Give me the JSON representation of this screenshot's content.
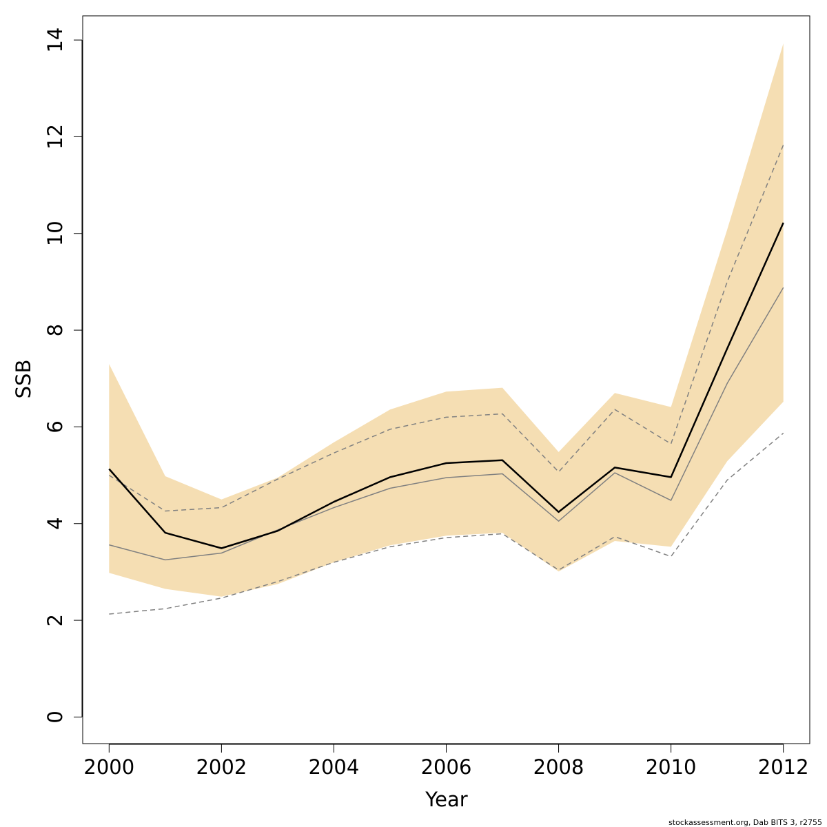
{
  "chart_data": {
    "type": "line",
    "xlabel": "Year",
    "ylabel": "SSB",
    "xlim": [
      1999.53,
      2012.47
    ],
    "ylim": [
      -0.55,
      14.5
    ],
    "x_ticks": [
      2000,
      2002,
      2004,
      2006,
      2008,
      2010,
      2012
    ],
    "y_ticks": [
      0,
      2,
      4,
      6,
      8,
      10,
      12,
      14
    ],
    "x": [
      2000,
      2001,
      2002,
      2003,
      2004,
      2005,
      2006,
      2007,
      2008,
      2009,
      2010,
      2011,
      2012
    ],
    "band": {
      "color": "#f5deb3",
      "upper": [
        7.3,
        4.98,
        4.5,
        4.95,
        5.68,
        6.36,
        6.73,
        6.81,
        5.48,
        6.7,
        6.41,
        10.08,
        13.93
      ],
      "lower": [
        2.98,
        2.65,
        2.49,
        2.75,
        3.2,
        3.55,
        3.75,
        3.81,
        3.01,
        3.64,
        3.52,
        5.29,
        6.52
      ]
    },
    "series": [
      {
        "style": "solid-thick",
        "color": "#000000",
        "values": [
          5.13,
          3.81,
          3.49,
          3.85,
          4.45,
          4.96,
          5.25,
          5.31,
          4.24,
          5.16,
          4.96,
          7.62,
          10.22
        ]
      },
      {
        "style": "solid-thin",
        "color": "#808080",
        "values": [
          3.56,
          3.25,
          3.39,
          3.87,
          4.33,
          4.73,
          4.95,
          5.03,
          4.05,
          5.05,
          4.48,
          6.9,
          8.88
        ]
      },
      {
        "style": "dashed",
        "color": "#808080",
        "values": [
          5.0,
          4.26,
          4.33,
          4.92,
          5.46,
          5.95,
          6.2,
          6.27,
          5.07,
          6.36,
          5.65,
          9.0,
          11.83
        ]
      },
      {
        "style": "dashed",
        "color": "#808080",
        "values": [
          2.13,
          2.24,
          2.46,
          2.8,
          3.2,
          3.52,
          3.71,
          3.79,
          3.04,
          3.73,
          3.32,
          4.9,
          5.87
        ]
      }
    ]
  },
  "credit": "stockassessment.org, Dab BITS 3, r2755"
}
